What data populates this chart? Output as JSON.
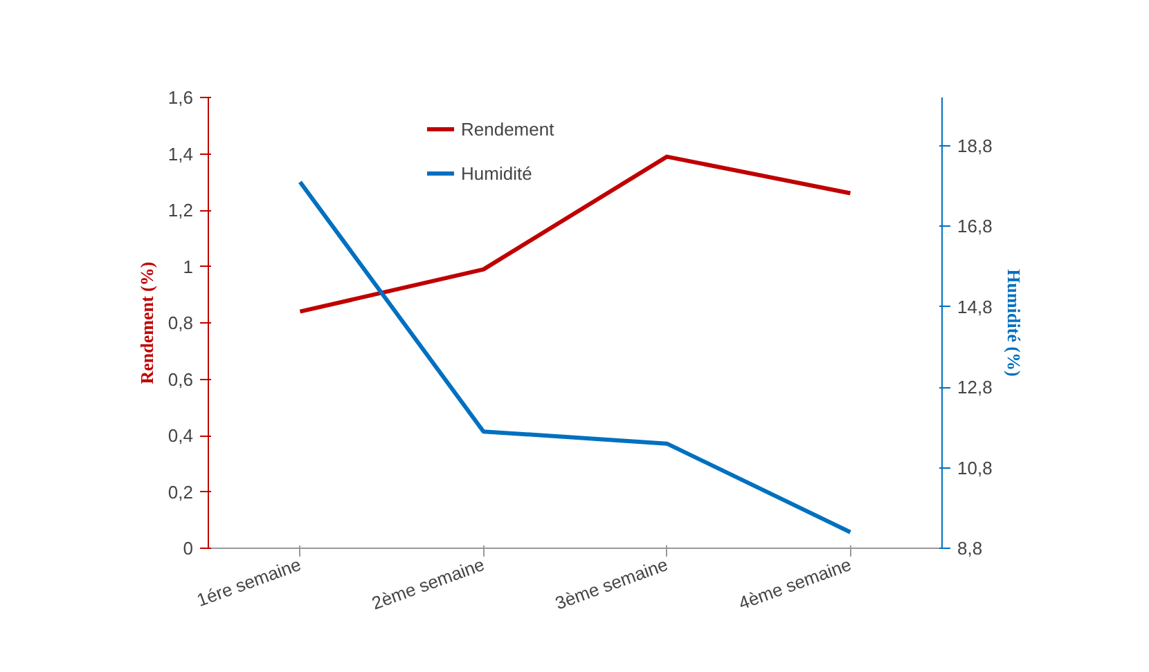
{
  "chart_data": {
    "type": "line",
    "categories": [
      "1ére semaine",
      "2ème semaine",
      "3ème semaine",
      "4ème semaine"
    ],
    "series": [
      {
        "name": "Rendement",
        "color": "#c00000",
        "values": [
          0.84,
          0.99,
          1.39,
          1.26
        ]
      },
      {
        "name": "Humidité",
        "color": "#0070c0",
        "values": [
          17.9,
          11.7,
          11.4,
          9.2
        ],
        "axis": "y2"
      }
    ],
    "ylabel": "Rendement (%)",
    "y2label": "Humidité (%)",
    "ylim": [
      0,
      1.6
    ],
    "yticks": [
      0,
      {
        "value": 0.2,
        "label": "0,2"
      },
      {
        "value": 0.4,
        "label": "0,4"
      },
      {
        "value": 0.6,
        "label": "0,6"
      },
      {
        "value": 0.8,
        "label": "0,8"
      },
      1,
      {
        "value": 1.2,
        "label": "1,2"
      },
      {
        "value": 1.4,
        "label": "1,4"
      },
      {
        "value": 1.6,
        "label": "1,6"
      }
    ],
    "y2lim": [
      8.8,
      20
    ],
    "y2ticks": [
      {
        "value": 8.8,
        "label": "8,8"
      },
      {
        "value": 10.8,
        "label": "10,8"
      },
      {
        "value": 12.8,
        "label": "12,8"
      },
      {
        "value": 14.8,
        "label": "14,8"
      },
      {
        "value": 16.8,
        "label": "16,8"
      },
      {
        "value": 18.8,
        "label": "18,8"
      }
    ],
    "grid": false,
    "legend": "top",
    "marker": "none",
    "line_style": "solid"
  }
}
